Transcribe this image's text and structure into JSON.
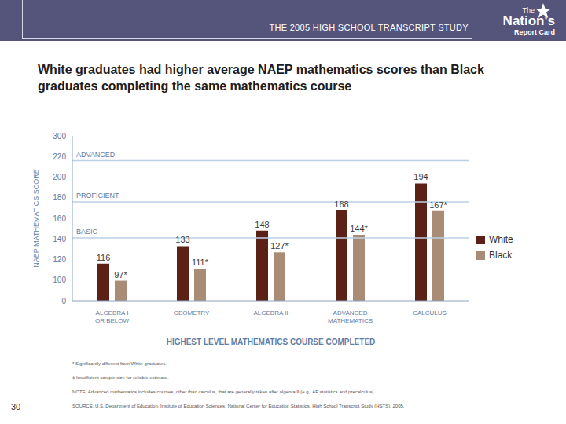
{
  "header": "THE 2005 HIGH SCHOOL TRANSCRIPT STUDY",
  "logo": [
    "The",
    "Nation's",
    "Report Card"
  ],
  "page_number": "30",
  "notes": [
    "* Significantly different from White graduates.",
    "‡ Insufficient sample size for reliable estimate.",
    "NOTE: Advanced mathematics includes courses, other than calculus, that are generally taken after algebra II (e.g., AP statistics and precalculus).",
    "SOURCE: U.S. Department of Education, Institute of Education Sciences, National Center for Education Statistics, High School Transcript Study (HSTS), 2005."
  ],
  "chart_data": {
    "type": "bar",
    "title": "White graduates had higher average NAEP mathematics scores than Black graduates completing the same mathematics course",
    "x_label": "HIGHEST LEVEL MATHEMATICS COURSE COMPLETED",
    "y_label": "NAEP MATHEMATICS SCORE",
    "categories": [
      "ALGEBRA I OR BELOW",
      "GEOMETRY",
      "ALGEBRA II",
      "ADVANCED MATHEMATICS",
      "CALCULUS"
    ],
    "series": [
      {
        "name": "White",
        "color": "#5b2117",
        "values": [
          116,
          133,
          148,
          168,
          194
        ]
      },
      {
        "name": "Black",
        "color": "#a88c76",
        "values": [
          97,
          111,
          127,
          144,
          167
        ],
        "value_labels": [
          "97*",
          "111*",
          "127*",
          "144*",
          "167*"
        ]
      }
    ],
    "data_labels": true,
    "ylim": [
      0,
      300
    ],
    "yticks": [
      0,
      100,
      120,
      140,
      160,
      180,
      200,
      220,
      300
    ],
    "legend": "right",
    "achievement_levels": [
      {
        "label": "ADVANCED",
        "value": 216
      },
      {
        "label": "PROFICIENT",
        "value": 176
      },
      {
        "label": "BASIC",
        "value": 141
      }
    ]
  }
}
